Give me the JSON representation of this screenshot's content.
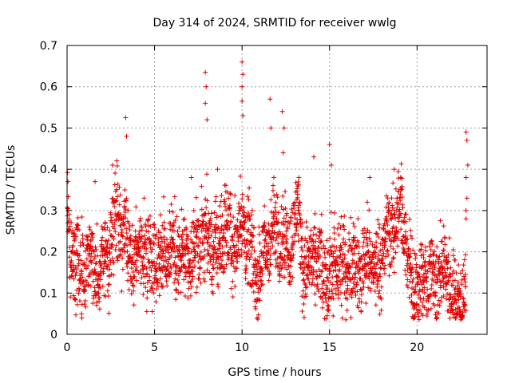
{
  "chart_data": {
    "type": "scatter",
    "title": "Day 314 of 2024, SRMTID for receiver wwlg",
    "xlabel": "GPS time / hours",
    "ylabel": "SRMTID / TECUs",
    "xlim": [
      0,
      24
    ],
    "ylim": [
      0,
      0.7
    ],
    "xticks": [
      0,
      5,
      10,
      15,
      20
    ],
    "xtick_labels": [
      "0",
      "5",
      "10",
      "15",
      "20"
    ],
    "yticks": [
      0,
      0.1,
      0.2,
      0.3,
      0.4,
      0.5,
      0.6,
      0.7
    ],
    "ytick_labels": [
      "0",
      "0.1",
      "0.2",
      "0.3",
      "0.4",
      "0.5",
      "0.6",
      "0.7"
    ],
    "grid": true,
    "marker": "+",
    "color": "#e00000",
    "series": [
      {
        "name": "SRMTID",
        "anchors_x": [
          0.0,
          0.1,
          0.3,
          0.6,
          0.9,
          1.2,
          1.6,
          2.0,
          2.4,
          2.8,
          3.1,
          3.3,
          3.5,
          3.8,
          4.2,
          4.6,
          5.0,
          5.5,
          6.0,
          6.5,
          7.0,
          7.5,
          7.8,
          8.2,
          8.6,
          9.0,
          9.4,
          9.8,
          10.0,
          10.3,
          10.7,
          11.0,
          11.4,
          11.8,
          12.1,
          12.4,
          12.8,
          13.2,
          13.6,
          14.0,
          14.4,
          14.8,
          15.0,
          15.3,
          15.7,
          16.0,
          16.4,
          16.8,
          17.2,
          17.6,
          18.0,
          18.4,
          18.8,
          19.1,
          19.4,
          19.8,
          20.2,
          20.6,
          21.0,
          21.4,
          21.8,
          22.2,
          22.5,
          22.8
        ],
        "anchors_y": [
          0.33,
          0.2,
          0.17,
          0.19,
          0.11,
          0.22,
          0.15,
          0.18,
          0.19,
          0.29,
          0.26,
          0.22,
          0.19,
          0.18,
          0.21,
          0.2,
          0.18,
          0.2,
          0.22,
          0.18,
          0.17,
          0.22,
          0.24,
          0.22,
          0.19,
          0.27,
          0.22,
          0.24,
          0.27,
          0.23,
          0.16,
          0.14,
          0.22,
          0.24,
          0.26,
          0.21,
          0.23,
          0.3,
          0.14,
          0.19,
          0.16,
          0.14,
          0.12,
          0.18,
          0.15,
          0.16,
          0.18,
          0.15,
          0.2,
          0.15,
          0.2,
          0.24,
          0.28,
          0.3,
          0.2,
          0.13,
          0.12,
          0.14,
          0.13,
          0.15,
          0.13,
          0.09,
          0.07,
          0.12
        ],
        "point_count": 2600,
        "spread": 0.05,
        "spikes": [
          {
            "x": 0.05,
            "y": 0.37
          },
          {
            "x": 1.6,
            "y": 0.37
          },
          {
            "x": 2.6,
            "y": 0.41
          },
          {
            "x": 3.35,
            "y": 0.525
          },
          {
            "x": 3.4,
            "y": 0.48
          },
          {
            "x": 4.4,
            "y": 0.33
          },
          {
            "x": 7.1,
            "y": 0.38
          },
          {
            "x": 7.9,
            "y": 0.635
          },
          {
            "x": 7.95,
            "y": 0.6
          },
          {
            "x": 7.9,
            "y": 0.56
          },
          {
            "x": 8.0,
            "y": 0.52
          },
          {
            "x": 8.6,
            "y": 0.4
          },
          {
            "x": 10.0,
            "y": 0.66
          },
          {
            "x": 10.05,
            "y": 0.63
          },
          {
            "x": 10.0,
            "y": 0.6
          },
          {
            "x": 10.0,
            "y": 0.565
          },
          {
            "x": 10.05,
            "y": 0.53
          },
          {
            "x": 11.6,
            "y": 0.57
          },
          {
            "x": 11.65,
            "y": 0.5
          },
          {
            "x": 12.3,
            "y": 0.54
          },
          {
            "x": 12.4,
            "y": 0.5
          },
          {
            "x": 12.35,
            "y": 0.44
          },
          {
            "x": 14.1,
            "y": 0.43
          },
          {
            "x": 15.0,
            "y": 0.46
          },
          {
            "x": 15.1,
            "y": 0.41
          },
          {
            "x": 17.3,
            "y": 0.38
          },
          {
            "x": 18.7,
            "y": 0.4
          },
          {
            "x": 22.8,
            "y": 0.49
          },
          {
            "x": 22.85,
            "y": 0.47
          },
          {
            "x": 22.9,
            "y": 0.41
          },
          {
            "x": 22.8,
            "y": 0.38
          },
          {
            "x": 22.85,
            "y": 0.33
          },
          {
            "x": 22.8,
            "y": 0.3
          },
          {
            "x": 22.8,
            "y": 0.28
          }
        ]
      }
    ]
  }
}
